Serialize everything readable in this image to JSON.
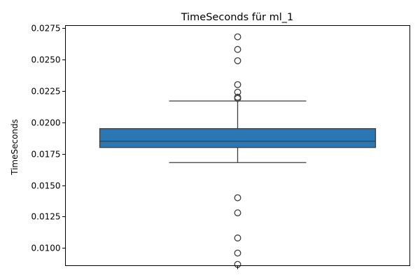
{
  "chart_data": {
    "type": "box",
    "title": "TimeSeconds für ml_1",
    "xlabel": "",
    "ylabel": "TimeSeconds",
    "ylim": [
      0.0086,
      0.0277
    ],
    "y_ticks": [
      "0.0100",
      "0.0125",
      "0.0150",
      "0.0175",
      "0.0200",
      "0.0225",
      "0.0250",
      "0.0275"
    ],
    "grid": false,
    "box_color": "#2b77b4",
    "line_color": "#3d3d3d",
    "box": {
      "q1": 0.018,
      "median": 0.0185,
      "q3": 0.0195,
      "whisker_low": 0.0168,
      "whisker_high": 0.0217
    },
    "outliers": [
      0.0268,
      0.0258,
      0.0249,
      0.023,
      0.0224,
      0.022,
      0.0219,
      0.014,
      0.0128,
      0.0108,
      0.0096,
      0.0087
    ]
  }
}
